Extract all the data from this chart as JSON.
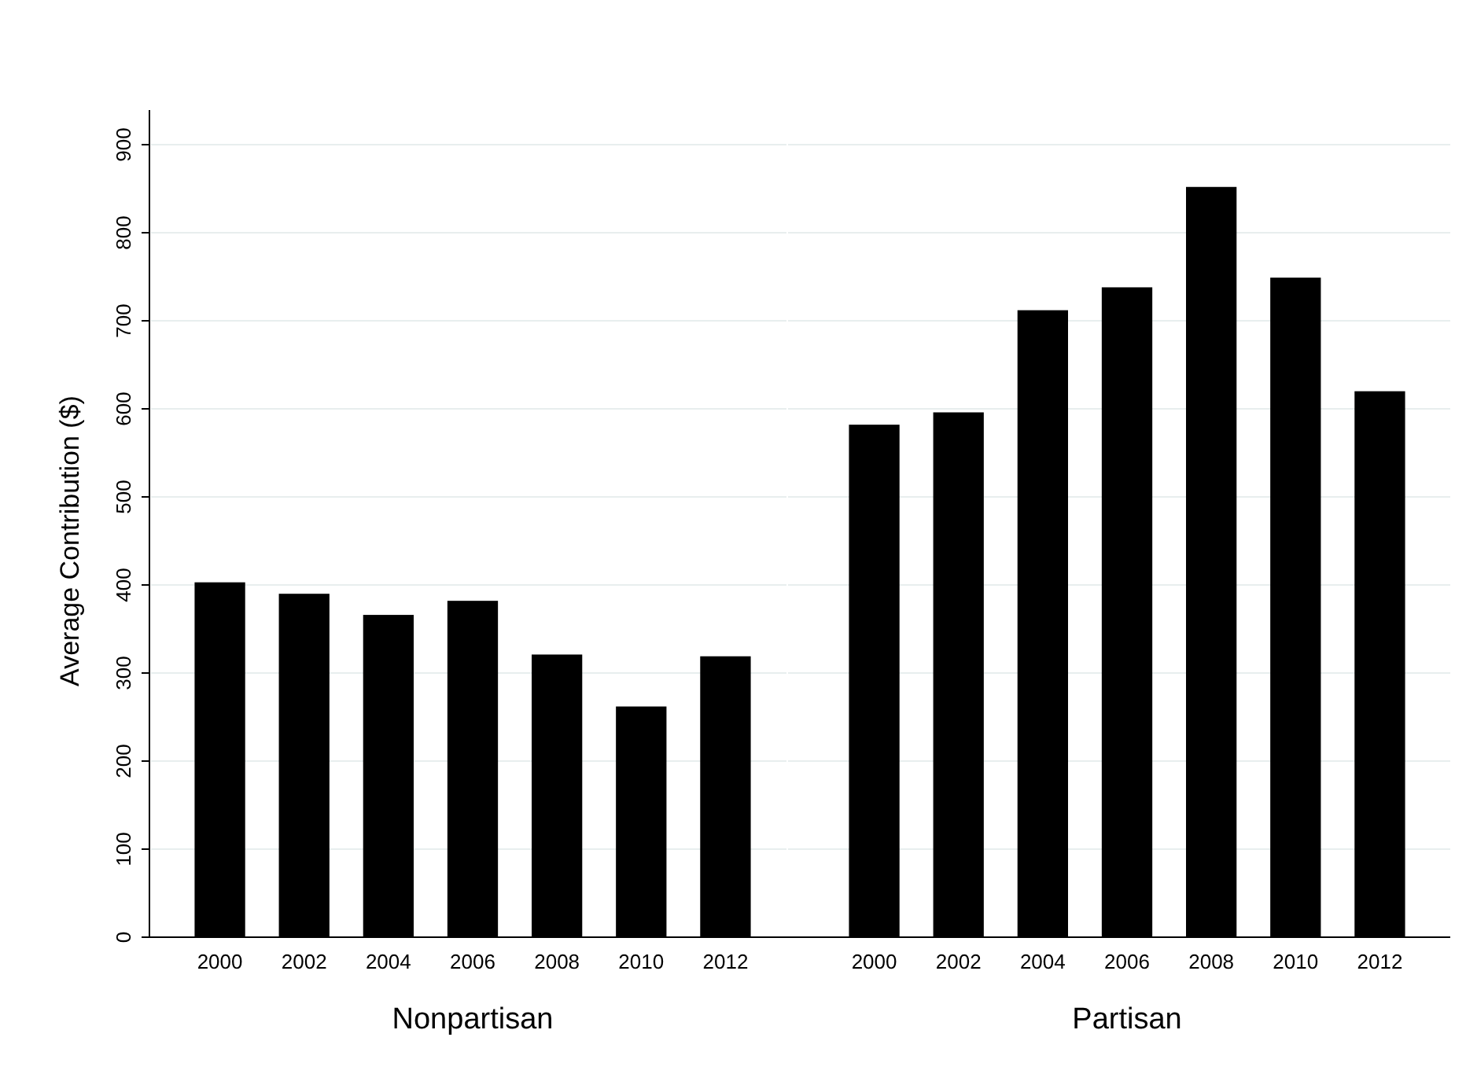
{
  "chart_data": [
    {
      "type": "bar",
      "xlabel": "Nonpartisan",
      "ylabel": "Average Contribution ($)",
      "categories": [
        "2000",
        "2002",
        "2004",
        "2006",
        "2008",
        "2010",
        "2012"
      ],
      "values": [
        403,
        390,
        366,
        382,
        321,
        262,
        319
      ],
      "color": "#000000",
      "ylim": [
        0,
        900
      ],
      "yticks": [
        0,
        100,
        200,
        300,
        400,
        500,
        600,
        700,
        800,
        900
      ],
      "grid": "y"
    },
    {
      "type": "bar",
      "xlabel": "Partisan",
      "categories": [
        "2000",
        "2002",
        "2004",
        "2006",
        "2008",
        "2010",
        "2012"
      ],
      "values": [
        582,
        596,
        712,
        738,
        852,
        749,
        620
      ],
      "color": "#000000",
      "ylim": [
        0,
        900
      ],
      "yticks": [
        0,
        100,
        200,
        300,
        400,
        500,
        600,
        700,
        800,
        900
      ],
      "grid": "y",
      "tick_labels": "x"
    }
  ]
}
